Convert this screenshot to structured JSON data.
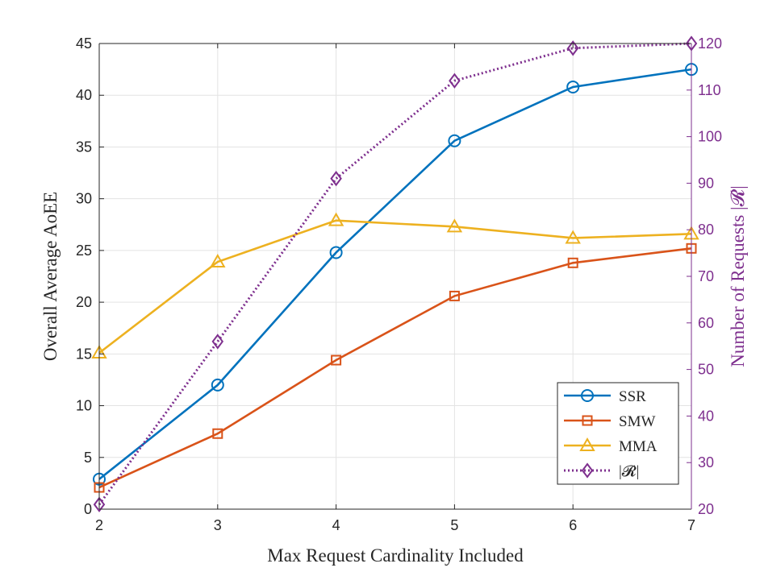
{
  "chart_data": {
    "type": "line",
    "title": "",
    "xlabel": "Max Request Cardinality Included",
    "ylabel": "Overall Average AoEE",
    "y2label": "Number of Requests |𝓡|",
    "x": [
      2,
      3,
      4,
      5,
      6,
      7
    ],
    "xlim": [
      2,
      7
    ],
    "ylim": [
      0,
      45
    ],
    "y2lim": [
      20,
      120
    ],
    "xticks": [
      "2",
      "3",
      "4",
      "5",
      "6",
      "7"
    ],
    "yticks": [
      "0",
      "5",
      "10",
      "15",
      "20",
      "25",
      "30",
      "35",
      "40",
      "45"
    ],
    "y2ticks": [
      "20",
      "30",
      "40",
      "50",
      "60",
      "70",
      "80",
      "90",
      "100",
      "110",
      "120"
    ],
    "grid": true,
    "legend_position": "bottom-right",
    "series": [
      {
        "name": "SSR",
        "axis": "left",
        "marker": "circle",
        "style": "solid",
        "color": "#0072BD",
        "values": [
          2.9,
          12.0,
          24.8,
          35.6,
          40.8,
          42.5
        ]
      },
      {
        "name": "SMW",
        "axis": "left",
        "marker": "square",
        "style": "solid",
        "color": "#D95319",
        "values": [
          2.1,
          7.3,
          14.4,
          20.6,
          23.8,
          25.2
        ]
      },
      {
        "name": "MMA",
        "axis": "left",
        "marker": "triangle",
        "style": "solid",
        "color": "#EDB120",
        "values": [
          15.1,
          23.9,
          27.9,
          27.3,
          26.2,
          26.6
        ]
      },
      {
        "name": "|𝓡|",
        "axis": "right",
        "marker": "diamond",
        "style": "dotted",
        "color": "#7E2F8E",
        "values": [
          21,
          56,
          91,
          112,
          119,
          120
        ]
      }
    ]
  }
}
